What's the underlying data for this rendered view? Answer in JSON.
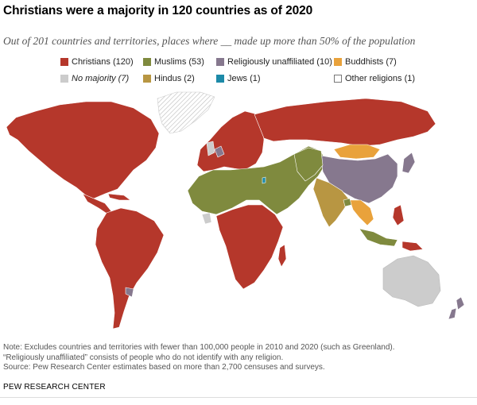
{
  "title": "Christians were a majority in 120 countries as of 2020",
  "subtitle": "Out of 201 countries and territories, places where __ made up more than 50% of the population",
  "legend": [
    {
      "label": "Christians (120)",
      "color": "#b5372b",
      "italic": false
    },
    {
      "label": "Muslims (53)",
      "color": "#7f8a3e",
      "italic": false
    },
    {
      "label": "Religiously unaffiliated (10)",
      "color": "#86788e",
      "italic": false
    },
    {
      "label": "Buddhists (7)",
      "color": "#e9a23b",
      "italic": false
    },
    {
      "label": "No majority (7)",
      "color": "#cccccc",
      "italic": true
    },
    {
      "label": "Hindus (2)",
      "color": "#b89642",
      "italic": false
    },
    {
      "label": "Jews (1)",
      "color": "#1d8aa8",
      "italic": false
    },
    {
      "label": "Other religions (1)",
      "color": "#ffffff",
      "italic": false
    }
  ],
  "note_lines": [
    "Note: Excludes countries and territories with fewer than 100,000 people in 2010 and 2020 (such as Greenland).",
    "“Religiously unaffiliated” consists of people who do not identify with any religion.",
    "Source: Pew Research Center estimates based on more than 2,700 censuses and surveys."
  ],
  "organization": "PEW RESEARCH CENTER",
  "colors": {
    "christians": "#b5372b",
    "muslims": "#7f8a3e",
    "unaffiliated": "#86788e",
    "buddhists": "#e9a23b",
    "no_majority": "#cccccc",
    "hindus": "#b89642",
    "jews": "#1d8aa8",
    "other": "#ffffff",
    "excluded_hatch": "#bbbbbb"
  }
}
